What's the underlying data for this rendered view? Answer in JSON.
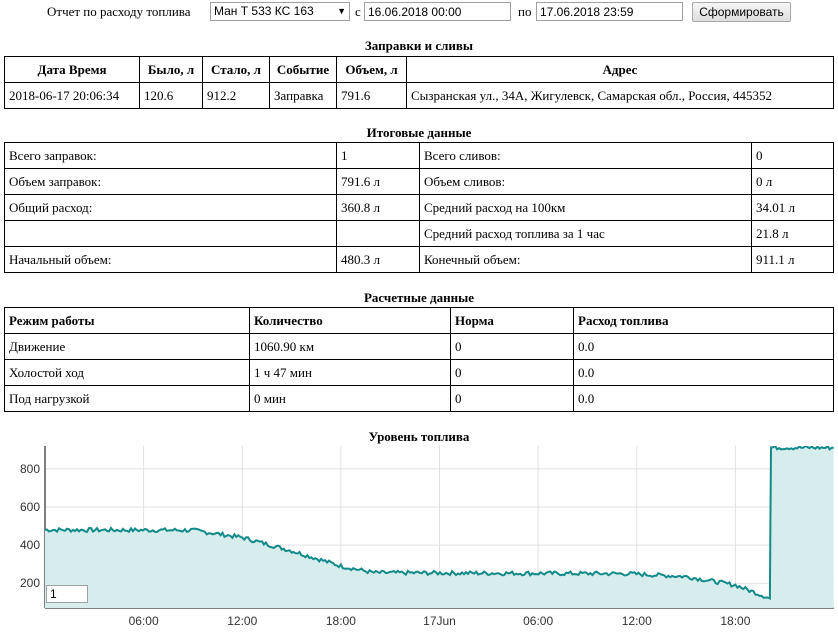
{
  "toolbar": {
    "report_label": "Отчет по расходу топлива",
    "vehicle_selected": "Ман Т 533 КС 163",
    "from_label": "с",
    "from_value": "16.06.2018 00:00",
    "to_label": "по",
    "to_value": "17.06.2018 23:59",
    "submit_label": "Сформировать"
  },
  "refuel": {
    "title": "Заправки и сливы",
    "columns": [
      "Дата Время",
      "Было, л",
      "Стало, л",
      "Событие",
      "Объем, л",
      "Адрес"
    ],
    "rows": [
      [
        "2018-06-17 20:06:34",
        "120.6",
        "912.2",
        "Заправка",
        "791.6",
        "Сызранская ул., 34А, Жигулевск, Самарская обл., Россия, 445352"
      ]
    ]
  },
  "summary": {
    "title": "Итоговые данные",
    "rows": [
      [
        "Всего заправок:",
        "1",
        "Всего сливов:",
        "0"
      ],
      [
        "Объем заправок:",
        "791.6 л",
        "Объем сливов:",
        "0 л"
      ],
      [
        "Общий расход:",
        "360.8 л",
        "Средний расход на 100км",
        "34.01 л"
      ],
      [
        "",
        "",
        "Средний расход топлива за 1 час",
        "21.8 л"
      ],
      [
        "Начальный объем:",
        "480.3 л",
        "Конечный объем:",
        "911.1 л"
      ]
    ]
  },
  "calc": {
    "title": "Расчетные данные",
    "columns": [
      "Режим работы",
      "Количество",
      "Норма",
      "Расход топлива"
    ],
    "rows": [
      [
        "Движение",
        "1060.90 км",
        "0",
        "0.0"
      ],
      [
        "Холостой ход",
        "1 ч 47 мин",
        "0",
        "0.0"
      ],
      [
        "Под нагрузкой",
        "0 мин",
        "0",
        "0.0"
      ]
    ]
  },
  "chart_data": {
    "type": "area",
    "title": "Уровень топлива",
    "xlabel": "",
    "ylabel": "",
    "x_start": "2018-06-16 00:00",
    "x_end": "2018-06-17 23:59",
    "x_tick_labels": [
      "06:00",
      "12:00",
      "18:00",
      "17Jun",
      "06:00",
      "12:00",
      "18:00"
    ],
    "y_ticks": [
      200,
      400,
      600,
      800
    ],
    "ylim": [
      70,
      920
    ],
    "grid": true,
    "line_color": "#138a8a",
    "fill_color": "#d7ecec",
    "x": [
      "2018-06-16 00:00",
      "2018-06-16 09:00",
      "2018-06-16 12:00",
      "2018-06-16 15:00",
      "2018-06-16 18:00",
      "2018-06-16 20:00",
      "2018-06-17 11:30",
      "2018-06-17 15:00",
      "2018-06-17 18:00",
      "2018-06-17 19:50",
      "2018-06-17 20:06",
      "2018-06-17 20:10",
      "2018-06-17 23:59"
    ],
    "values": [
      480,
      478,
      440,
      370,
      290,
      255,
      250,
      235,
      190,
      130,
      120,
      912,
      911
    ],
    "zoom_input_value": "1"
  }
}
